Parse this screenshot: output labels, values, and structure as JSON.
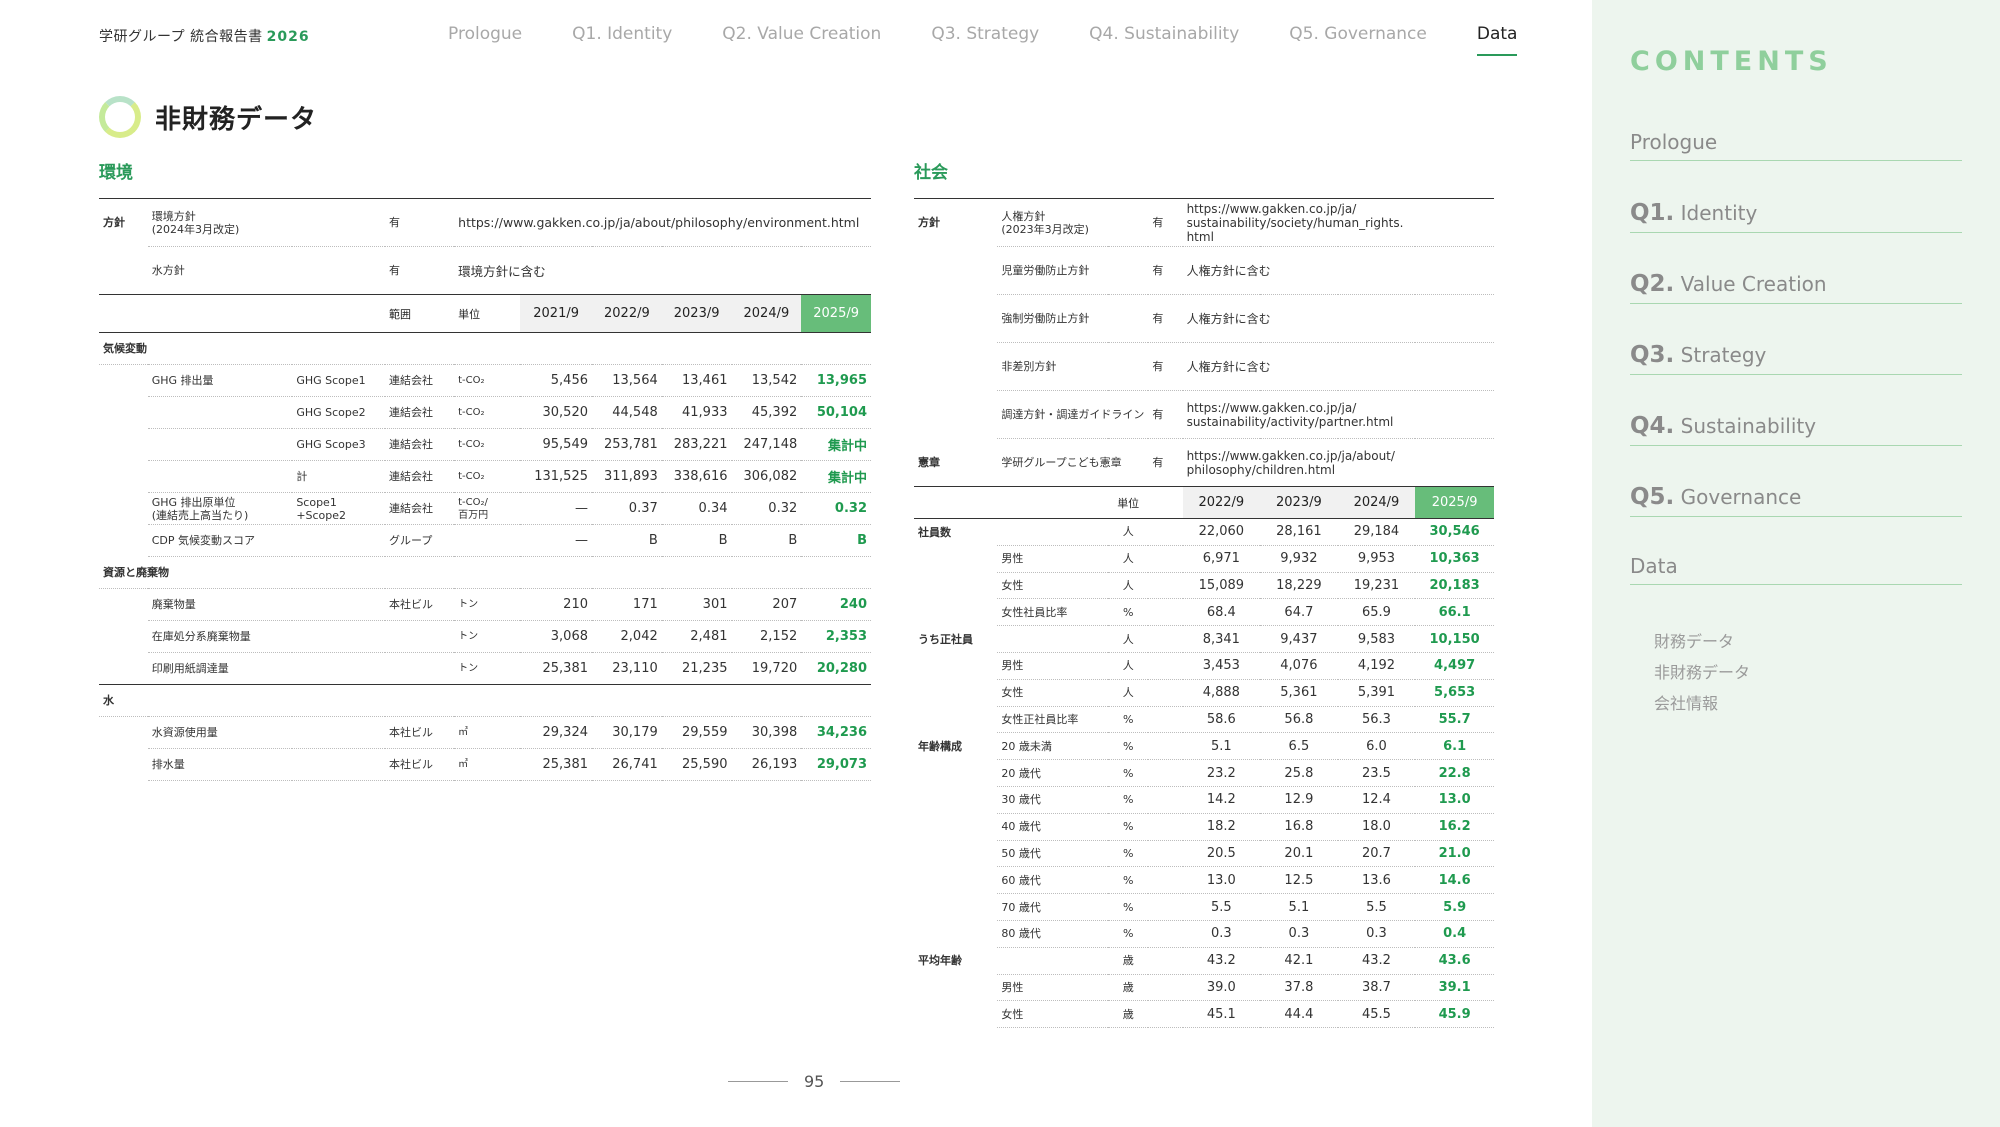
{
  "header": {
    "report_title": "学研グループ 統合報告書",
    "report_year": "2026",
    "nav": [
      "Prologue",
      "Q1. Identity",
      "Q2. Value Creation",
      "Q3. Strategy",
      "Q4. Sustainability",
      "Q5. Governance",
      "Data"
    ]
  },
  "page_heading": "非財務データ",
  "env": {
    "title": "環境",
    "policy_label": "方針",
    "policies": [
      {
        "name": "環境方針\n(2024年3月改定)",
        "status": "有",
        "detail": "https://www.gakken.co.jp/ja/about/philosophy/environment.html"
      },
      {
        "name": "水方針",
        "status": "有",
        "detail": "環境方針に含む"
      }
    ],
    "headers": {
      "scope": "範囲",
      "unit": "単位",
      "years": [
        "2021/9",
        "2022/9",
        "2023/9",
        "2024/9",
        "2025/9"
      ]
    },
    "groups": [
      {
        "label": "気候変動",
        "rows": [
          {
            "item": "GHG 排出量",
            "sub": "GHG Scope1",
            "scope": "連結会社",
            "unit": "t-CO₂",
            "v": [
              "5,456",
              "13,564",
              "13,461",
              "13,542",
              "13,965"
            ]
          },
          {
            "item": "",
            "sub": "GHG Scope2",
            "scope": "連結会社",
            "unit": "t-CO₂",
            "v": [
              "30,520",
              "44,548",
              "41,933",
              "45,392",
              "50,104"
            ]
          },
          {
            "item": "",
            "sub": "GHG Scope3",
            "scope": "連結会社",
            "unit": "t-CO₂",
            "v": [
              "95,549",
              "253,781",
              "283,221",
              "247,148",
              "集計中"
            ]
          },
          {
            "item": "",
            "sub": "計",
            "scope": "連結会社",
            "unit": "t-CO₂",
            "v": [
              "131,525",
              "311,893",
              "338,616",
              "306,082",
              "集計中"
            ]
          },
          {
            "item": "GHG 排出原単位\n(連結売上高当たり)",
            "sub": "Scope1\n+Scope2",
            "scope": "連結会社",
            "unit": "t-CO₂/\n百万円",
            "v": [
              "—",
              "0.37",
              "0.34",
              "0.32",
              "0.32"
            ]
          },
          {
            "item": "CDP 気候変動スコア",
            "sub": "",
            "scope": "グループ",
            "unit": "",
            "v": [
              "—",
              "B",
              "B",
              "B",
              "B"
            ]
          }
        ]
      },
      {
        "label": "資源と廃棄物",
        "rows": [
          {
            "item": "廃棄物量",
            "sub": "",
            "scope": "本社ビル",
            "unit": "トン",
            "v": [
              "210",
              "171",
              "301",
              "207",
              "240"
            ]
          },
          {
            "item": "在庫処分系廃棄物量",
            "sub": "",
            "scope": "",
            "unit": "トン",
            "v": [
              "3,068",
              "2,042",
              "2,481",
              "2,152",
              "2,353"
            ]
          },
          {
            "item": "印刷用紙調達量",
            "sub": "",
            "scope": "",
            "unit": "トン",
            "v": [
              "25,381",
              "23,110",
              "21,235",
              "19,720",
              "20,280"
            ]
          }
        ]
      },
      {
        "label": "水",
        "rows": [
          {
            "item": "水資源使用量",
            "sub": "",
            "scope": "本社ビル",
            "unit": "㎥",
            "v": [
              "29,324",
              "30,179",
              "29,559",
              "30,398",
              "34,236"
            ]
          },
          {
            "item": "排水量",
            "sub": "",
            "scope": "本社ビル",
            "unit": "㎥",
            "v": [
              "25,381",
              "26,741",
              "25,590",
              "26,193",
              "29,073"
            ]
          }
        ]
      }
    ]
  },
  "soc": {
    "title": "社会",
    "policy_label": "方針",
    "charter_label": "憲章",
    "policies": [
      {
        "name": "人権方針\n(2023年3月改定)",
        "status": "有",
        "detail": "https://www.gakken.co.jp/ja/\nsustainability/society/human_rights.\nhtml"
      },
      {
        "name": "児童労働防止方針",
        "status": "有",
        "detail": "人権方針に含む"
      },
      {
        "name": "強制労働防止方針",
        "status": "有",
        "detail": "人権方針に含む"
      },
      {
        "name": "非差別方針",
        "status": "有",
        "detail": "人権方針に含む"
      },
      {
        "name": "調達方針・調達ガイドライン",
        "status": "有",
        "detail": "https://www.gakken.co.jp/ja/\nsustainability/activity/partner.html"
      }
    ],
    "charter": {
      "name": "学研グループこども憲章",
      "status": "有",
      "detail": "https://www.gakken.co.jp/ja/about/\nphilosophy/children.html"
    },
    "headers": {
      "unit": "単位",
      "years": [
        "2022/9",
        "2023/9",
        "2024/9",
        "2025/9"
      ]
    },
    "rows": [
      {
        "cat": "社員数",
        "item": "",
        "unit": "人",
        "v": [
          "22,060",
          "28,161",
          "29,184",
          "30,546"
        ]
      },
      {
        "cat": "",
        "item": "男性",
        "unit": "人",
        "v": [
          "6,971",
          "9,932",
          "9,953",
          "10,363"
        ]
      },
      {
        "cat": "",
        "item": "女性",
        "unit": "人",
        "v": [
          "15,089",
          "18,229",
          "19,231",
          "20,183"
        ]
      },
      {
        "cat": "",
        "item": "女性社員比率",
        "unit": "%",
        "v": [
          "68.4",
          "64.7",
          "65.9",
          "66.1"
        ]
      },
      {
        "cat": "うち正社員",
        "item": "",
        "unit": "人",
        "v": [
          "8,341",
          "9,437",
          "9,583",
          "10,150"
        ]
      },
      {
        "cat": "",
        "item": "男性",
        "unit": "人",
        "v": [
          "3,453",
          "4,076",
          "4,192",
          "4,497"
        ]
      },
      {
        "cat": "",
        "item": "女性",
        "unit": "人",
        "v": [
          "4,888",
          "5,361",
          "5,391",
          "5,653"
        ]
      },
      {
        "cat": "",
        "item": "女性正社員比率",
        "unit": "%",
        "v": [
          "58.6",
          "56.8",
          "56.3",
          "55.7"
        ]
      },
      {
        "cat": "年齢構成",
        "item": "20 歳未満",
        "unit": "%",
        "v": [
          "5.1",
          "6.5",
          "6.0",
          "6.1"
        ]
      },
      {
        "cat": "",
        "item": "20 歳代",
        "unit": "%",
        "v": [
          "23.2",
          "25.8",
          "23.5",
          "22.8"
        ]
      },
      {
        "cat": "",
        "item": "30 歳代",
        "unit": "%",
        "v": [
          "14.2",
          "12.9",
          "12.4",
          "13.0"
        ]
      },
      {
        "cat": "",
        "item": "40 歳代",
        "unit": "%",
        "v": [
          "18.2",
          "16.8",
          "18.0",
          "16.2"
        ]
      },
      {
        "cat": "",
        "item": "50 歳代",
        "unit": "%",
        "v": [
          "20.5",
          "20.1",
          "20.7",
          "21.0"
        ]
      },
      {
        "cat": "",
        "item": "60 歳代",
        "unit": "%",
        "v": [
          "13.0",
          "12.5",
          "13.6",
          "14.6"
        ]
      },
      {
        "cat": "",
        "item": "70 歳代",
        "unit": "%",
        "v": [
          "5.5",
          "5.1",
          "5.5",
          "5.9"
        ]
      },
      {
        "cat": "",
        "item": "80 歳代",
        "unit": "%",
        "v": [
          "0.3",
          "0.3",
          "0.3",
          "0.4"
        ]
      },
      {
        "cat": "平均年齢",
        "item": "",
        "unit": "歳",
        "v": [
          "43.2",
          "42.1",
          "43.2",
          "43.6"
        ]
      },
      {
        "cat": "",
        "item": "男性",
        "unit": "歳",
        "v": [
          "39.0",
          "37.8",
          "38.7",
          "39.1"
        ]
      },
      {
        "cat": "",
        "item": "女性",
        "unit": "歳",
        "v": [
          "45.1",
          "44.4",
          "45.5",
          "45.9"
        ]
      }
    ]
  },
  "page_number": "95",
  "sidebar": {
    "title": "CONTENTS",
    "items": [
      {
        "prefix": "",
        "label": "Prologue"
      },
      {
        "prefix": "Q1.",
        "label": "Identity"
      },
      {
        "prefix": "Q2.",
        "label": "Value Creation"
      },
      {
        "prefix": "Q3.",
        "label": "Strategy"
      },
      {
        "prefix": "Q4.",
        "label": "Sustainability"
      },
      {
        "prefix": "Q5.",
        "label": "Governance"
      },
      {
        "prefix": "",
        "label": "Data"
      }
    ],
    "sub_items": [
      "財務データ",
      "非財務データ",
      "会社情報"
    ]
  },
  "colors": {
    "accent": "#2a9a5a",
    "highlight_header": "#67bd7a",
    "sidebar_bg": "#edf5ee"
  }
}
